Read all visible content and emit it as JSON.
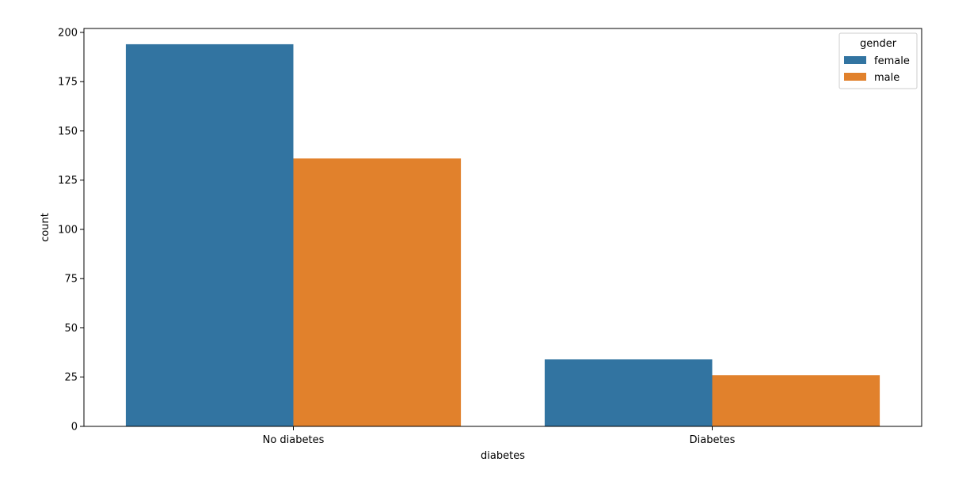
{
  "chart_data": {
    "type": "bar",
    "title": "",
    "xlabel": "diabetes",
    "ylabel": "count",
    "categories": [
      "No diabetes",
      "Diabetes"
    ],
    "series": [
      {
        "name": "female",
        "values": [
          194,
          34
        ],
        "color": "#3274a1"
      },
      {
        "name": "male",
        "values": [
          136,
          26
        ],
        "color": "#e1812c"
      }
    ],
    "ylim": [
      0,
      202
    ],
    "yticks": [
      0,
      25,
      50,
      75,
      100,
      125,
      150,
      175,
      200
    ],
    "grid": false,
    "legend": {
      "title": "gender",
      "placement": "top-right"
    }
  }
}
